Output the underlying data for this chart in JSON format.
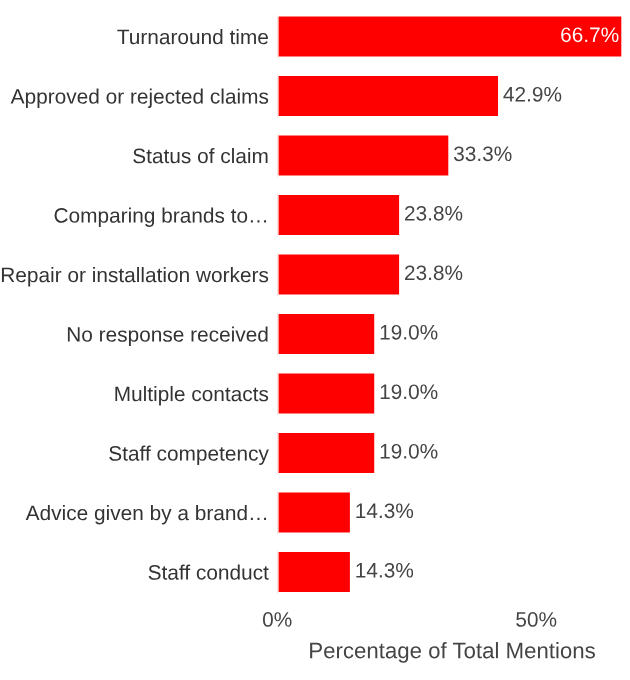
{
  "chart_data": {
    "type": "bar",
    "orientation": "horizontal",
    "xlabel": "Percentage of Total Mentions",
    "categories": [
      "Turnaround time",
      "Approved or rejected claims",
      "Status of claim",
      "Comparing brands to…",
      "Repair or installation workers",
      "No response received",
      "Multiple contacts",
      "Staff competency",
      "Advice given by a brand…",
      "Staff conduct"
    ],
    "values": [
      66.7,
      42.9,
      33.3,
      23.8,
      23.8,
      19.0,
      19.0,
      19.0,
      14.3,
      14.3
    ],
    "value_labels": [
      "66.7%",
      "42.9%",
      "33.3%",
      "23.8%",
      "23.8%",
      "19.0%",
      "19.0%",
      "19.0%",
      "14.3%",
      "14.3%"
    ],
    "color": "#ff0000",
    "xlim": [
      0,
      67.5
    ],
    "xticks": [
      {
        "value": 0,
        "label": "0%"
      },
      {
        "value": 50,
        "label": "50%"
      }
    ]
  }
}
